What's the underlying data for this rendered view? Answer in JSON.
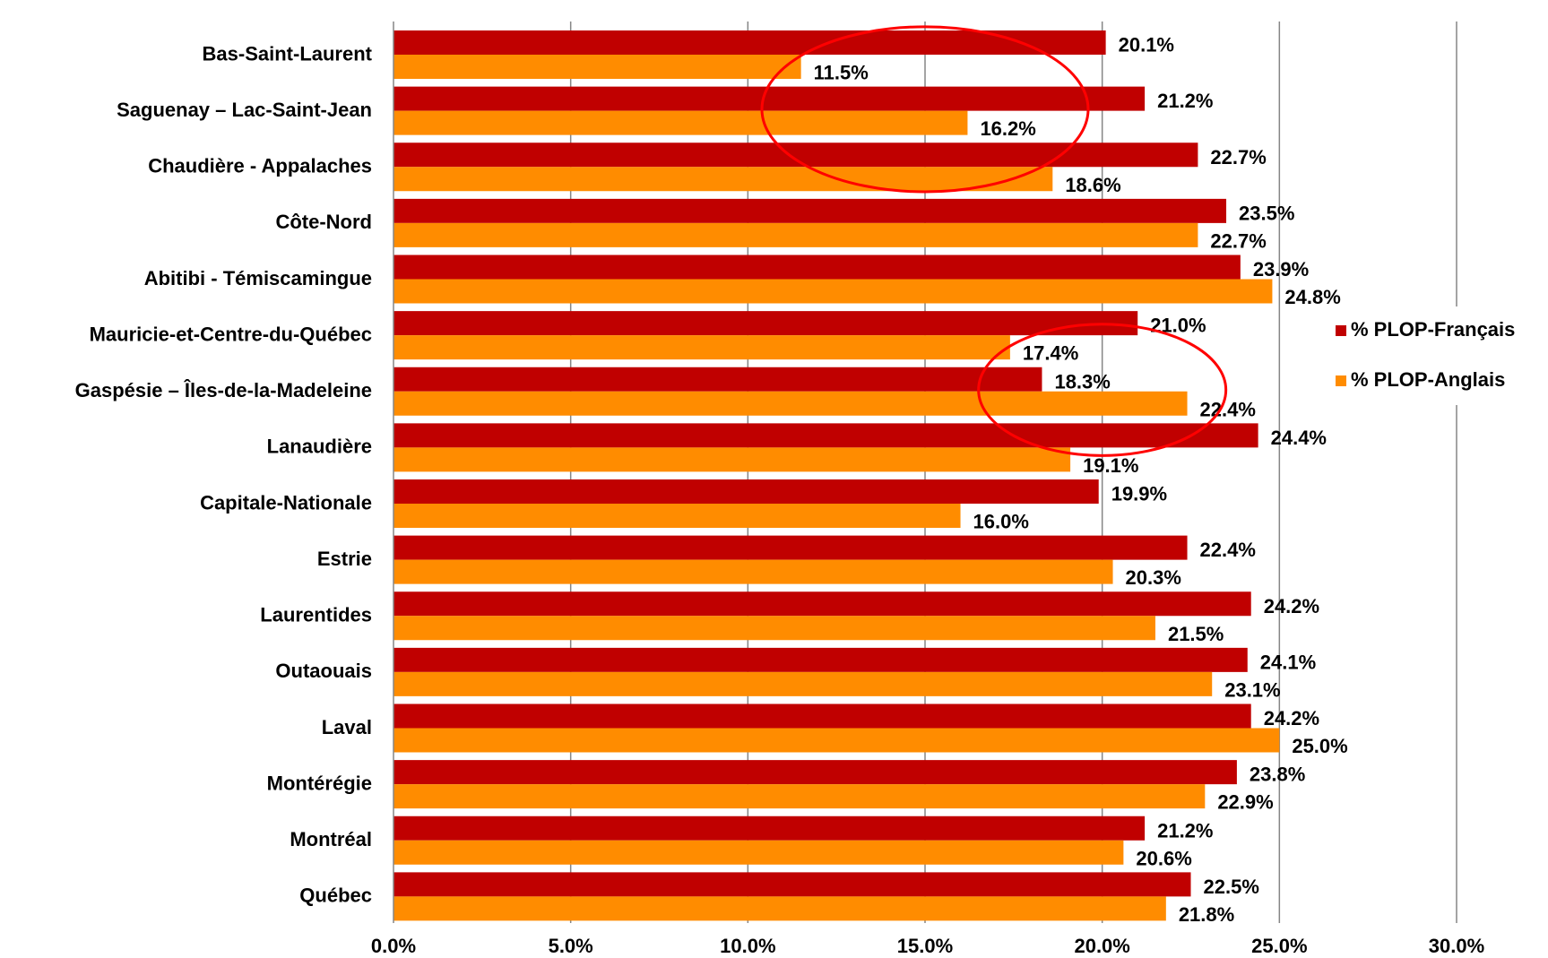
{
  "chart_data": {
    "type": "bar",
    "orientation": "horizontal",
    "categories": [
      "Bas-Saint-Laurent",
      "Saguenay – Lac-Saint-Jean",
      "Chaudière - Appalaches",
      "Côte-Nord",
      "Abitibi - Témiscamingue",
      "Mauricie-et-Centre-du-Québec",
      "Gaspésie – Îles-de-la-Madeleine",
      "Lanaudière",
      "Capitale-Nationale",
      "Estrie",
      "Laurentides",
      "Outaouais",
      "Laval",
      "Montérégie",
      "Montréal",
      "Québec"
    ],
    "series": [
      {
        "name": "% PLOP-Français",
        "color": "#c00000",
        "values": [
          20.1,
          21.2,
          22.7,
          23.5,
          23.9,
          21.0,
          18.3,
          24.4,
          19.9,
          22.4,
          24.2,
          24.1,
          24.2,
          23.8,
          21.2,
          22.5
        ],
        "labels": [
          "20.1%",
          "21.2%",
          "22.7%",
          "23.5%",
          "23.9%",
          "21.0%",
          "18.3%",
          "24.4%",
          "19.9%",
          "22.4%",
          "24.2%",
          "24.1%",
          "24.2%",
          "23.8%",
          "21.2%",
          "22.5%"
        ]
      },
      {
        "name": "% PLOP-Anglais",
        "color": "#ff8c00",
        "values": [
          11.5,
          16.2,
          18.6,
          22.7,
          24.8,
          17.4,
          22.4,
          19.1,
          16.0,
          20.3,
          21.5,
          23.1,
          25.0,
          22.9,
          20.6,
          21.8
        ],
        "labels": [
          "11.5%",
          "16.2%",
          "18.6%",
          "22.7%",
          "24.8%",
          "17.4%",
          "22.4%",
          "19.1%",
          "16.0%",
          "20.3%",
          "21.5%",
          "23.1%",
          "25.0%",
          "22.9%",
          "20.6%",
          "21.8%"
        ]
      }
    ],
    "xlim": [
      0,
      30
    ],
    "xticks": [
      0,
      5,
      10,
      15,
      20,
      25,
      30
    ],
    "xtick_labels": [
      "0.0%",
      "5.0%",
      "10.0%",
      "15.0%",
      "20.0%",
      "25.0%",
      "30.0%"
    ],
    "grid": "vertical",
    "legend_position": "right",
    "annotations": [
      {
        "type": "ellipse",
        "color": "#ff0000",
        "cx": 15.0,
        "cy_category_span": [
          0,
          2
        ]
      },
      {
        "type": "ellipse",
        "color": "#ff0000",
        "cx": 20.0,
        "cy_category_span": [
          5,
          7
        ]
      }
    ]
  }
}
